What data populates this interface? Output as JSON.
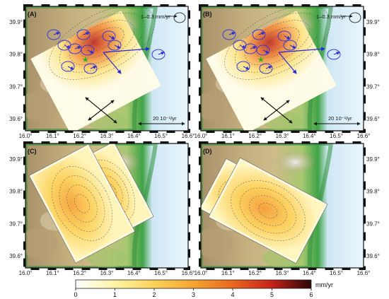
{
  "panels": {
    "A": {
      "label": "(A)",
      "rate_note": "1–0.3 mm/yr",
      "scale_note": "20 10⁻¹/yr"
    },
    "B": {
      "label": "(B)",
      "rate_note": "1–0.3 mm/yr",
      "scale_note": "20 10⁻¹/yr"
    },
    "C": {
      "label": "(C)"
    },
    "D": {
      "label": "(D)"
    }
  },
  "axes": {
    "lon_ticks": [
      "16.0°",
      "16.1°",
      "16.2°",
      "16.3°",
      "16.4°",
      "16.5°",
      "16.6°"
    ],
    "lat_ticks": [
      "39.9°",
      "39.8°",
      "39.7°",
      "39.6°"
    ]
  },
  "colorbar": {
    "unit": "mm/yr",
    "ticks": [
      "0",
      "1",
      "2",
      "3",
      "4",
      "5",
      "6"
    ],
    "colors": [
      "#ffffff",
      "#fff6b0",
      "#fde36a",
      "#f9b43a",
      "#f07f24",
      "#dd3a1a",
      "#a9140f",
      "#3a0a05"
    ]
  },
  "map_colors": {
    "sea": "#cfe8f5",
    "coast": "#2f9e3b",
    "lowland": "#9bc466",
    "hills": "#c9b27a",
    "highland": "#a88d66",
    "peaks": "#e8e3dc"
  }
}
